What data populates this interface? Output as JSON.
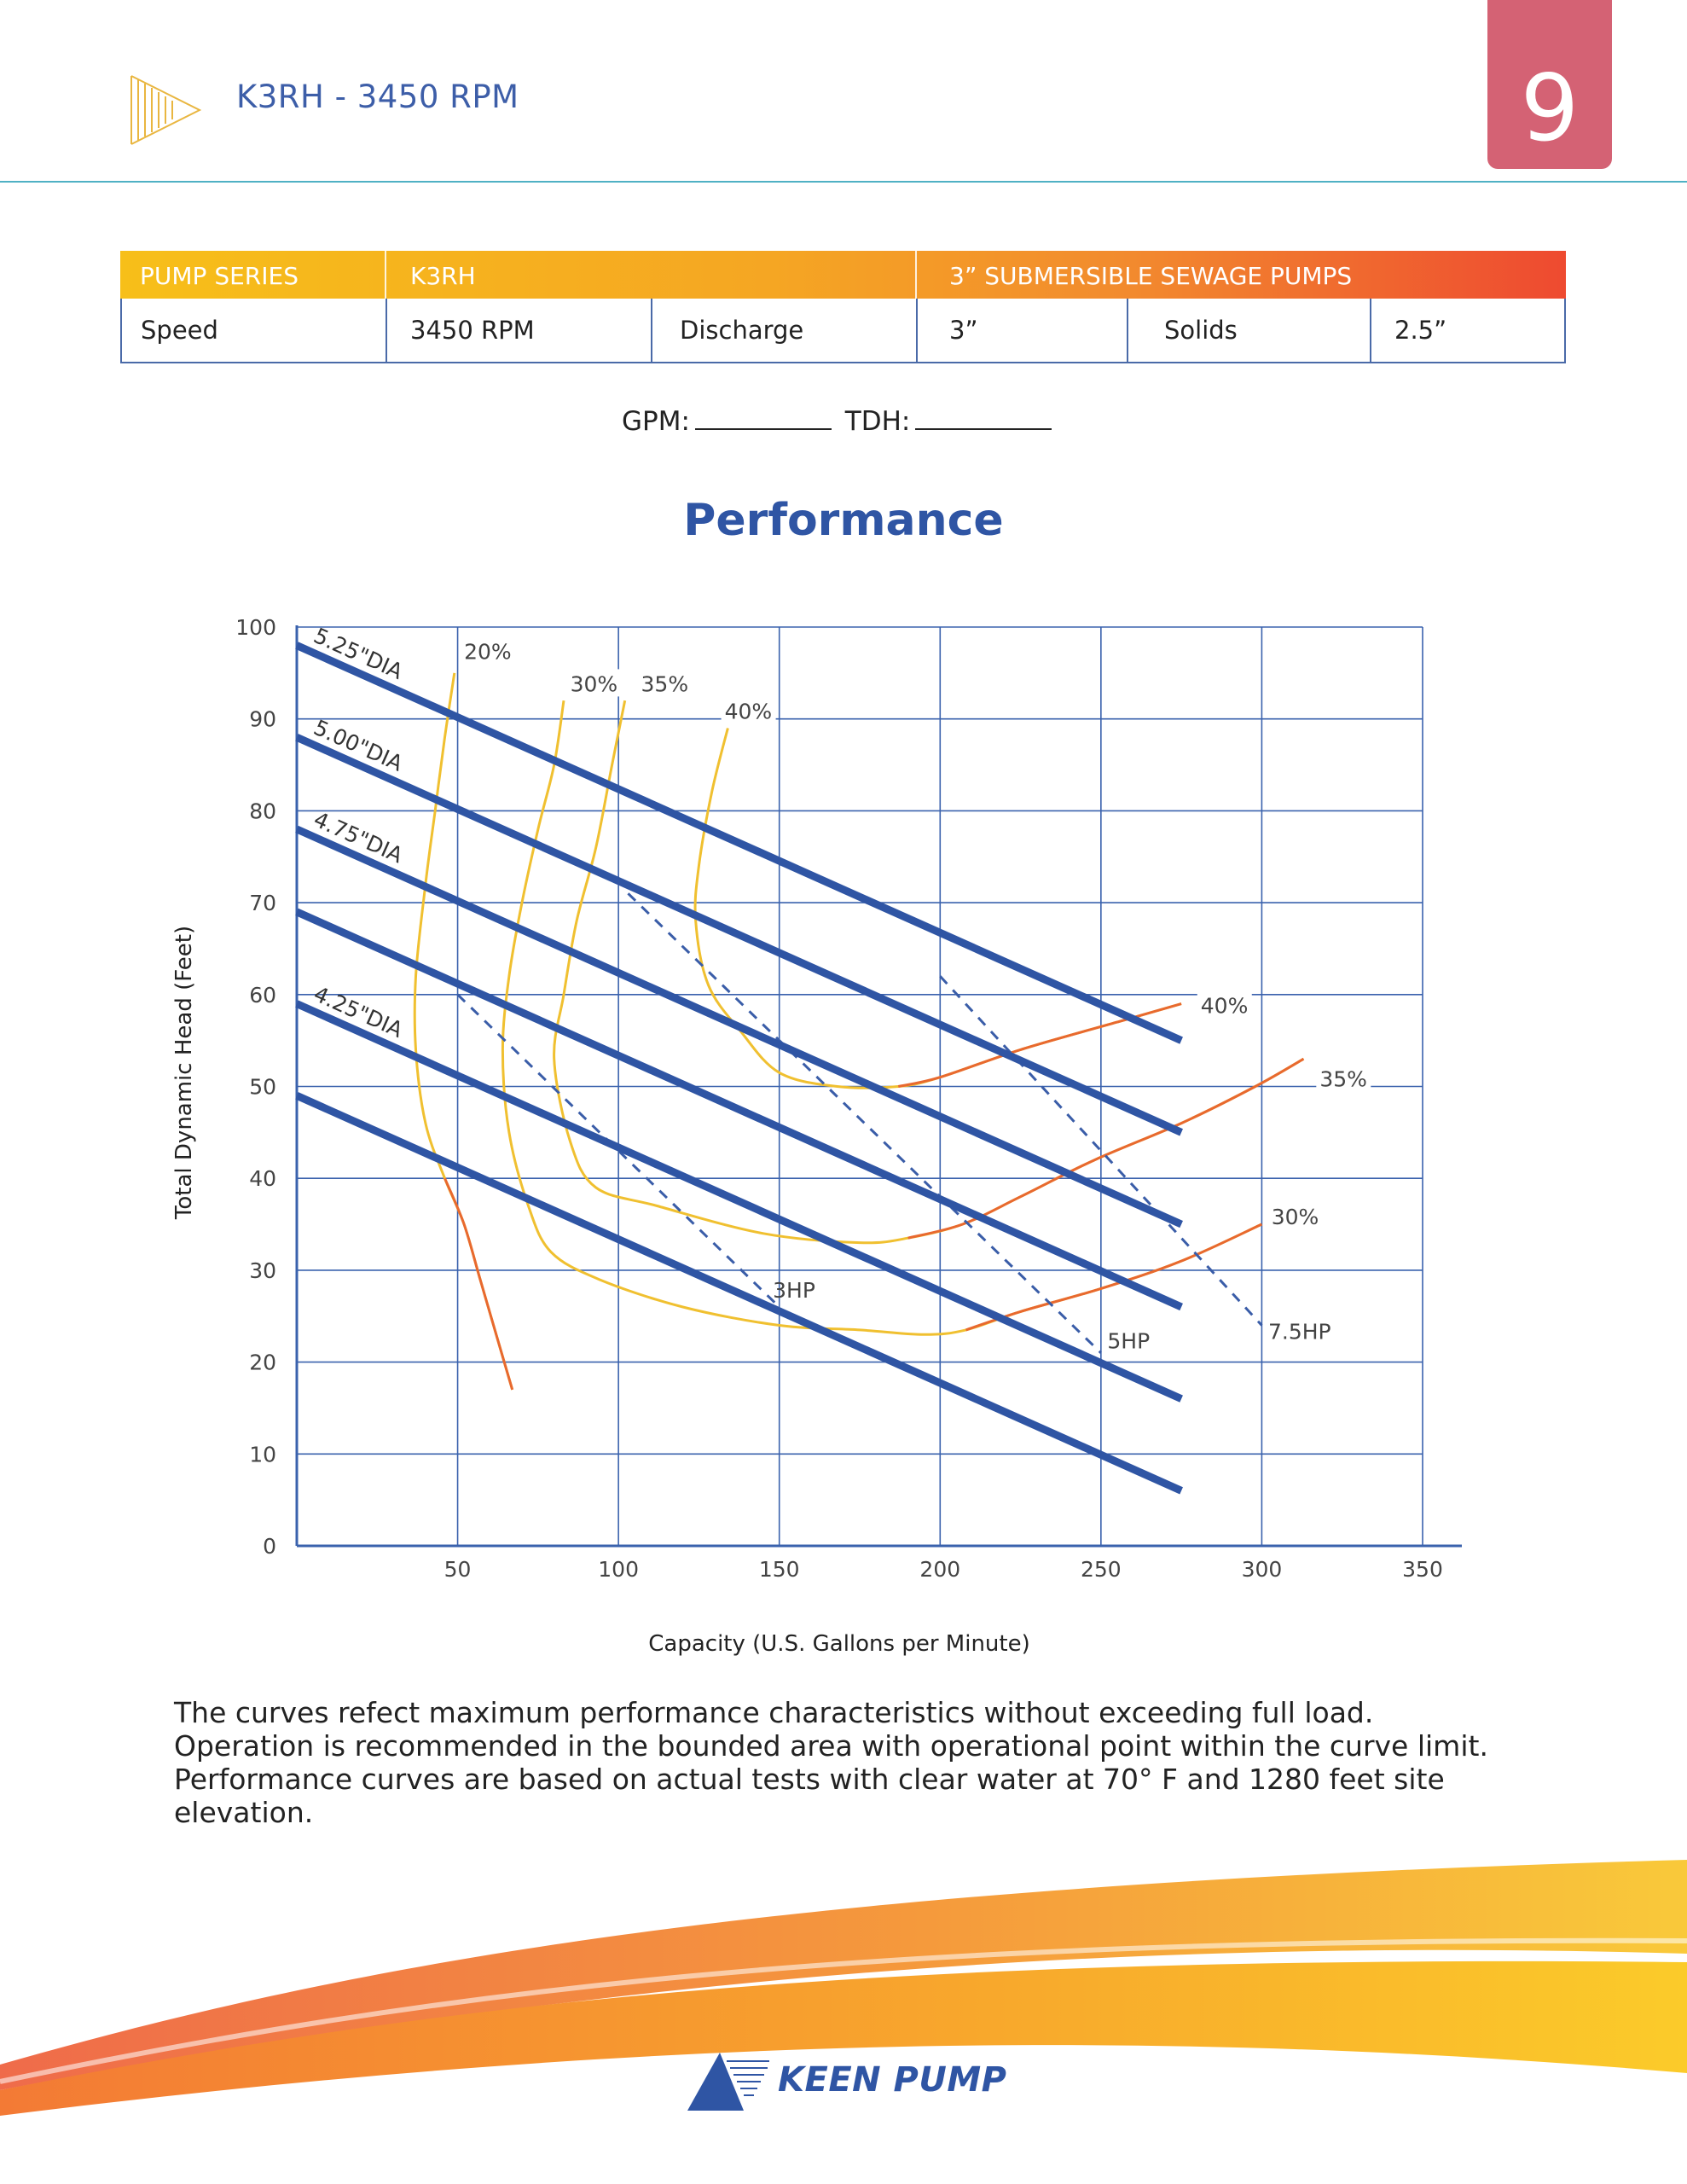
{
  "header": {
    "title": "K3RH - 3450 RPM",
    "page_number": "9"
  },
  "spec_table": {
    "head": {
      "series_label": "PUMP SERIES",
      "series_value": "K3RH",
      "category": "3” SUBMERSIBLE SEWAGE PUMPS"
    },
    "row": {
      "speed_label": "Speed",
      "speed_value": "3450 RPM",
      "discharge_label": "Discharge",
      "discharge_value": "3”",
      "solids_label": "Solids",
      "solids_value": "2.5”"
    }
  },
  "form": {
    "gpm_label": "GPM:",
    "tdh_label": "TDH:"
  },
  "section_title": "Performance",
  "chart_data": {
    "type": "line",
    "title": "Performance",
    "xlabel": "Capacity (U.S. Gallons per Minute)",
    "ylabel": "Total Dynamic Head (Feet)",
    "xlim": [
      0,
      350
    ],
    "ylim": [
      0,
      100
    ],
    "x_ticks": [
      50,
      100,
      150,
      200,
      250,
      300,
      350
    ],
    "y_ticks": [
      0,
      10,
      20,
      30,
      40,
      50,
      60,
      70,
      80,
      90,
      100
    ],
    "grid": true,
    "impeller_curves": [
      {
        "name": "5.25\"DIA",
        "points": [
          [
            0,
            98
          ],
          [
            275,
            55
          ]
        ]
      },
      {
        "name": "5.00\"DIA",
        "points": [
          [
            0,
            88
          ],
          [
            275,
            45
          ]
        ]
      },
      {
        "name": "4.75\"DIA",
        "points": [
          [
            0,
            78
          ],
          [
            275,
            35
          ]
        ]
      },
      {
        "name": "",
        "points": [
          [
            0,
            69
          ],
          [
            275,
            26
          ]
        ]
      },
      {
        "name": "4.25\"DIA",
        "points": [
          [
            0,
            59
          ],
          [
            275,
            16
          ]
        ]
      },
      {
        "name": "",
        "points": [
          [
            0,
            49
          ],
          [
            275,
            6
          ]
        ]
      }
    ],
    "efficiency_curves": [
      {
        "name": "20%",
        "points": [
          [
            49,
            95
          ],
          [
            46,
            88
          ],
          [
            43,
            80
          ],
          [
            40,
            72
          ],
          [
            37,
            62
          ],
          [
            37,
            54
          ],
          [
            40,
            46
          ],
          [
            46,
            40
          ],
          [
            52,
            35
          ],
          [
            57,
            29
          ],
          [
            62,
            23
          ],
          [
            67,
            17
          ]
        ]
      },
      {
        "name": "30%",
        "points": [
          [
            83,
            92
          ],
          [
            80,
            85
          ],
          [
            75,
            78
          ],
          [
            70,
            70
          ],
          [
            66,
            62
          ],
          [
            64,
            54
          ],
          [
            66,
            45
          ],
          [
            72,
            37
          ],
          [
            79,
            32
          ],
          [
            94,
            29
          ],
          [
            120,
            26
          ],
          [
            150,
            24
          ],
          [
            175,
            23.5
          ],
          [
            195,
            23
          ],
          [
            208,
            23.5
          ],
          [
            225,
            25.5
          ],
          [
            250,
            28
          ],
          [
            275,
            31
          ],
          [
            300,
            35
          ]
        ]
      },
      {
        "name": "35%",
        "points": [
          [
            102,
            92
          ],
          [
            98,
            85
          ],
          [
            93,
            76
          ],
          [
            87,
            68
          ],
          [
            83,
            60
          ],
          [
            80,
            53
          ],
          [
            85,
            44
          ],
          [
            93,
            39
          ],
          [
            112,
            37
          ],
          [
            145,
            34
          ],
          [
            175,
            33
          ],
          [
            190,
            33.5
          ],
          [
            207,
            35
          ],
          [
            225,
            38
          ],
          [
            248,
            42
          ],
          [
            275,
            46
          ],
          [
            298,
            50
          ],
          [
            313,
            53
          ]
        ]
      },
      {
        "name": "40%",
        "points": [
          [
            134,
            89
          ],
          [
            129,
            82
          ],
          [
            125,
            74
          ],
          [
            124,
            68
          ],
          [
            128,
            61
          ],
          [
            138,
            56
          ],
          [
            150,
            51.5
          ],
          [
            168,
            50
          ],
          [
            187,
            50
          ],
          [
            200,
            51
          ],
          [
            225,
            54
          ],
          [
            255,
            57
          ],
          [
            275,
            59
          ]
        ]
      }
    ],
    "efficiency_labels": [
      {
        "text": "20%",
        "x": 52,
        "y": 96.5
      },
      {
        "text": "30%",
        "x": 85,
        "y": 93
      },
      {
        "text": "35%",
        "x": 107,
        "y": 93
      },
      {
        "text": "40%",
        "x": 133,
        "y": 90
      },
      {
        "text": "40%",
        "x": 281,
        "y": 58
      },
      {
        "text": "35%",
        "x": 318,
        "y": 50
      },
      {
        "text": "30%",
        "x": 303,
        "y": 35
      }
    ],
    "hp_limits": [
      {
        "name": "3HP",
        "points": [
          [
            50,
            60
          ],
          [
            150,
            26
          ]
        ]
      },
      {
        "name": "5HP",
        "points": [
          [
            103,
            71
          ],
          [
            250,
            21
          ]
        ]
      },
      {
        "name": "7.5HP",
        "points": [
          [
            200,
            62
          ],
          [
            300,
            24
          ]
        ]
      }
    ],
    "hp_labels": [
      {
        "text": "3HP",
        "x": 148,
        "y": 27
      },
      {
        "text": "5HP",
        "x": 252,
        "y": 21.5
      },
      {
        "text": "7.5HP",
        "x": 302,
        "y": 22.5
      }
    ],
    "colors": {
      "impeller": "#2f55a4",
      "efficiency": "#f0c030",
      "limit": "#e8692f",
      "hp": "#3a5da8",
      "grid": "#3a62ad"
    }
  },
  "note": {
    "line1": "The curves refect maximum performance characteristics without exceeding full load.",
    "line2": "Operation is recommended in the bounded area with operational point within the curve limit.",
    "line3": "Performance curves are based on actual tests with clear water at 70° F and 1280 feet site",
    "line4": "elevation."
  },
  "footer": {
    "brand": "KEEN PUMP"
  }
}
